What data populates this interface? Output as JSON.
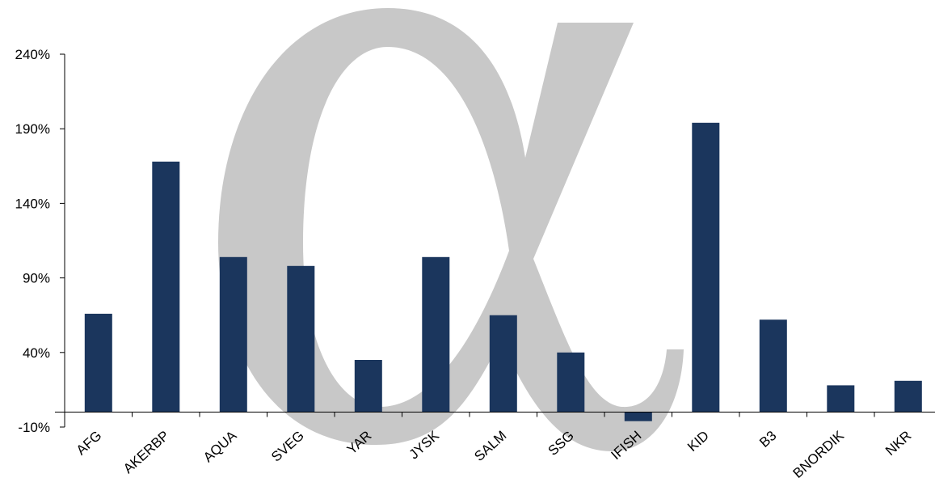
{
  "chart_data": {
    "type": "bar",
    "categories": [
      "AFG",
      "AKERBP",
      "AQUA",
      "SVEG",
      "YAR",
      "JYSK",
      "SALM",
      "SSG",
      "IFISH",
      "KID",
      "B3",
      "BNORDIK",
      "NKR"
    ],
    "series": [
      {
        "values": [
          66,
          168,
          104,
          98,
          35,
          104,
          65,
          40,
          -6,
          194,
          62,
          18,
          21
        ]
      }
    ],
    "ylim": [
      -10,
      240
    ],
    "yticks": [
      -10,
      40,
      90,
      140,
      190,
      240
    ],
    "ytick_labels": [
      "-10%",
      "40%",
      "90%",
      "140%",
      "190%",
      "240%"
    ],
    "title": "",
    "xlabel": "",
    "ylabel": "",
    "bar_color": "#1b365d",
    "watermark_color": "#c8c8c8",
    "watermark_symbol": "alpha-symbol",
    "grid": false,
    "legend": "none"
  }
}
